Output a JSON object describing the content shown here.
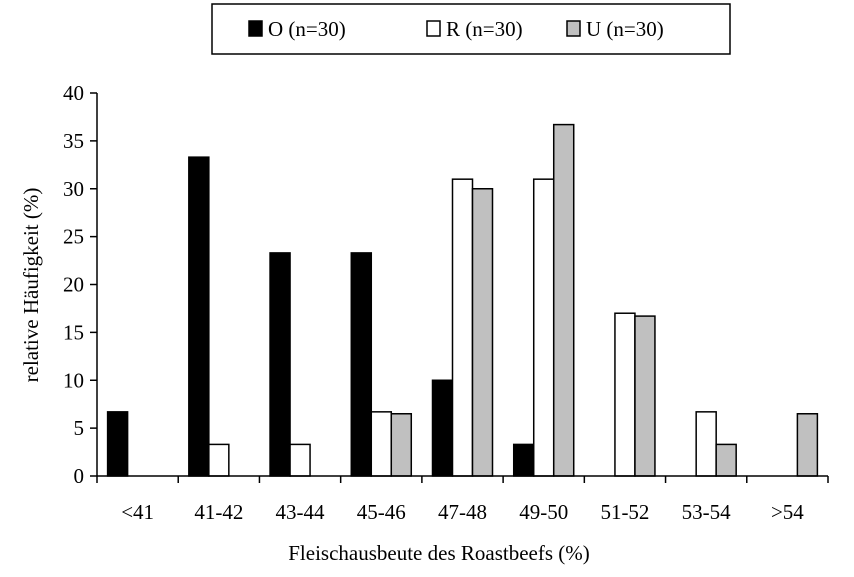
{
  "chart_data": {
    "type": "bar",
    "categories": [
      "<41",
      "41-42",
      "43-44",
      "45-46",
      "47-48",
      "49-50",
      "51-52",
      "53-54",
      ">54"
    ],
    "series": [
      {
        "name": "O (n=30)",
        "color": "#000000",
        "values": [
          6.7,
          33.3,
          23.3,
          23.3,
          10.0,
          3.3,
          0,
          0,
          0
        ]
      },
      {
        "name": "R (n=30)",
        "color": "#ffffff",
        "values": [
          0,
          3.3,
          3.3,
          6.7,
          31.0,
          31.0,
          17.0,
          6.7,
          0
        ]
      },
      {
        "name": "U (n=30)",
        "color": "#c0c0c0",
        "values": [
          0,
          0,
          0,
          6.5,
          30.0,
          36.7,
          16.7,
          3.3,
          6.5
        ]
      }
    ],
    "xlabel": "Fleischausbeute des Roastbeefs (%)",
    "ylabel": "relative Häufigkeit (%)",
    "ylim": [
      0,
      40
    ],
    "yticks": [
      "0",
      "5",
      "10",
      "15",
      "20",
      "25",
      "30",
      "35",
      "40"
    ],
    "grid": false,
    "legend_position": "top"
  }
}
